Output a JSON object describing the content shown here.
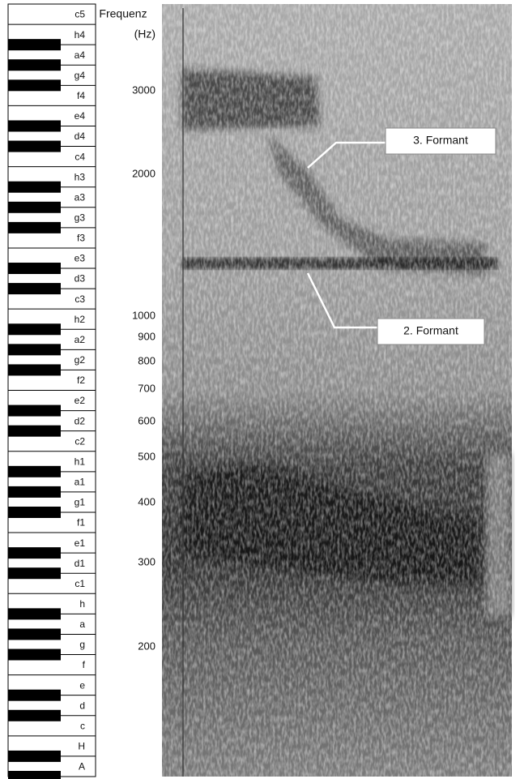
{
  "axis_label": {
    "line1": "Frequenz",
    "line2": "(Hz)"
  },
  "ticks": [
    "3000",
    "2000",
    "1000",
    "900",
    "800",
    "700",
    "600",
    "500",
    "400",
    "300",
    "200"
  ],
  "keys": [
    "c5",
    "h4",
    "a4",
    "g4",
    "f4",
    "e4",
    "d4",
    "c4",
    "h3",
    "a3",
    "g3",
    "f3",
    "e3",
    "d3",
    "c3",
    "h2",
    "a2",
    "g2",
    "f2",
    "e2",
    "d2",
    "c2",
    "h1",
    "a1",
    "g1",
    "f1",
    "e1",
    "d1",
    "c1",
    "h",
    "a",
    "g",
    "f",
    "e",
    "d",
    "c",
    "H",
    "A"
  ],
  "annotations": [
    "3. Formant",
    "2. Formant"
  ]
}
